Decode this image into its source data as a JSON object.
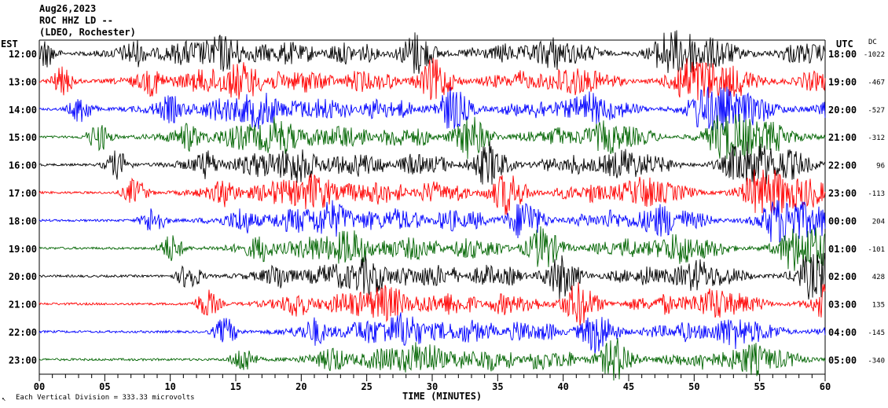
{
  "header": {
    "date": "Aug26,2023",
    "station": "ROC HHZ LD --",
    "network": "(LDEO, Rochester)"
  },
  "left_timezone": "EST",
  "right_timezone": "UTC",
  "dc_header": "DC",
  "footer": {
    "scale_note": "Each Vertical Division = 333.33 microvolts"
  },
  "colors": {
    "black": "#000000",
    "red": "#ff0000",
    "blue": "#0000ff",
    "green": "#006400"
  },
  "chart_data": {
    "type": "line",
    "xlabel": "TIME (MINUTES)",
    "xlim": [
      0,
      60
    ],
    "x_ticks": [
      "00",
      "05",
      "10",
      "15",
      "20",
      "25",
      "30",
      "35",
      "40",
      "45",
      "50",
      "55",
      "60"
    ],
    "rows": [
      {
        "est": "12:00",
        "utc": "18:00",
        "dc": "-1022",
        "color": "black"
      },
      {
        "est": "13:00",
        "utc": "19:00",
        "dc": "-467",
        "color": "red"
      },
      {
        "est": "14:00",
        "utc": "20:00",
        "dc": "-527",
        "color": "blue"
      },
      {
        "est": "15:00",
        "utc": "21:00",
        "dc": "-312",
        "color": "green"
      },
      {
        "est": "16:00",
        "utc": "22:00",
        "dc": "96",
        "color": "black"
      },
      {
        "est": "17:00",
        "utc": "23:00",
        "dc": "-113",
        "color": "red"
      },
      {
        "est": "18:00",
        "utc": "00:00",
        "dc": "204",
        "color": "blue"
      },
      {
        "est": "19:00",
        "utc": "01:00",
        "dc": "-101",
        "color": "green"
      },
      {
        "est": "20:00",
        "utc": "02:00",
        "dc": "428",
        "color": "black"
      },
      {
        "est": "21:00",
        "utc": "03:00",
        "dc": "135",
        "color": "red"
      },
      {
        "est": "22:00",
        "utc": "04:00",
        "dc": "-145",
        "color": "blue"
      },
      {
        "est": "23:00",
        "utc": "05:00",
        "dc": "-340",
        "color": "green"
      }
    ]
  }
}
